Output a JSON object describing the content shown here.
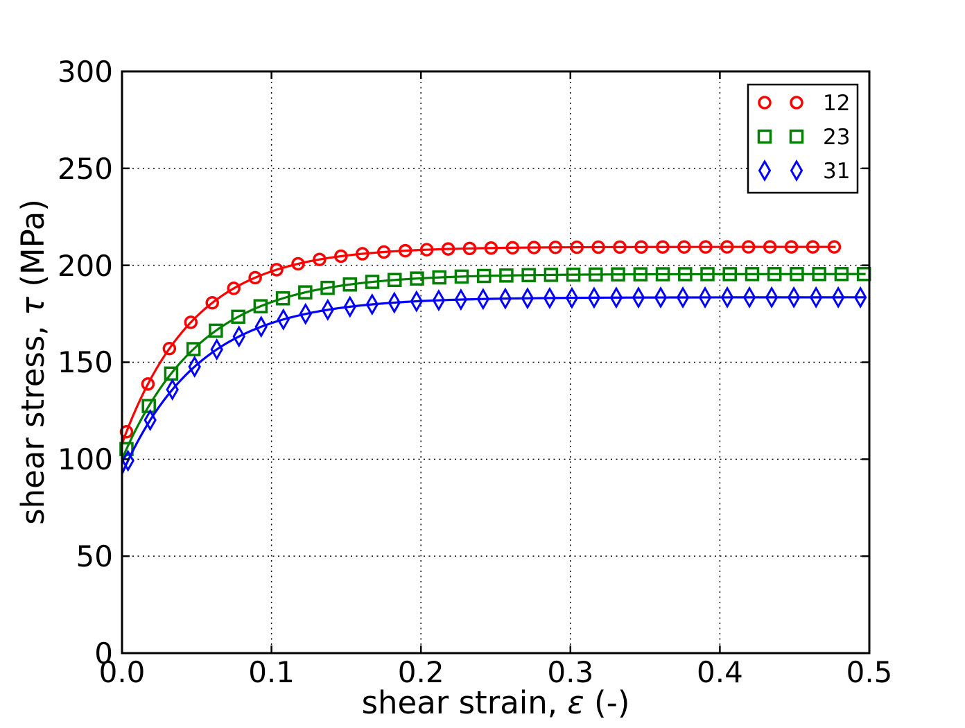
{
  "chart_data": {
    "type": "line",
    "title": "",
    "xlabel": {
      "pre": "shear strain, ",
      "symbol": "ε",
      "post": " (-)"
    },
    "ylabel": {
      "pre": "shear stress, ",
      "symbol": "τ",
      "post": " (MPa)"
    },
    "xlim": [
      0.0,
      0.5
    ],
    "ylim": [
      0,
      300
    ],
    "x_ticks": [
      0.0,
      0.1,
      0.2,
      0.3,
      0.4,
      0.5
    ],
    "x_tick_labels": [
      "0.0",
      "0.1",
      "0.2",
      "0.3",
      "0.4",
      "0.5"
    ],
    "y_ticks": [
      0,
      50,
      100,
      150,
      200,
      250,
      300
    ],
    "y_tick_labels": [
      "0",
      "50",
      "100",
      "150",
      "200",
      "250",
      "300"
    ],
    "grid": {
      "visible": true,
      "style": "dotted",
      "color": "#000000"
    },
    "legend": {
      "position": "upper right",
      "num_marker_points": 2,
      "entries": [
        "12",
        "23",
        "31"
      ]
    },
    "series": [
      {
        "name": "12",
        "color": "#ff0000",
        "marker": "circle",
        "model": {
          "tau0": 108.0,
          "tau_sat": 209.5,
          "eps_c": 0.048
        },
        "strain_end": 0.4795,
        "markers": {
          "first": 0.003,
          "step": 0.01435,
          "count": 34
        },
        "samples": {
          "strain": [
            0.0,
            0.05,
            0.1,
            0.15,
            0.2,
            0.25,
            0.3,
            0.35,
            0.4,
            0.45,
            0.48
          ],
          "stress": [
            108.0,
            173.7,
            196.9,
            205.0,
            207.9,
            208.9,
            209.3,
            209.4,
            209.5,
            209.5,
            209.5
          ]
        }
      },
      {
        "name": "23",
        "color": "#007f00",
        "marker": "square",
        "model": {
          "tau0": 100.0,
          "tau_sat": 195.5,
          "eps_c": 0.053
        },
        "strain_end": 0.4995,
        "markers": {
          "first": 0.003,
          "step": 0.01495,
          "count": 34
        },
        "samples": {
          "strain": [
            0.0,
            0.05,
            0.1,
            0.15,
            0.2,
            0.25,
            0.3,
            0.35,
            0.4,
            0.45,
            0.5
          ],
          "stress": [
            100.0,
            158.3,
            181.0,
            189.9,
            193.3,
            194.7,
            195.2,
            195.4,
            195.5,
            195.5,
            195.5
          ]
        }
      },
      {
        "name": "31",
        "color": "#0000ff",
        "marker": "thin-diamond",
        "model": {
          "tau0": 92.5,
          "tau_sat": 183.5,
          "eps_c": 0.052
        },
        "strain_end": 0.4975,
        "markers": {
          "first": 0.004,
          "step": 0.01485,
          "count": 34
        },
        "samples": {
          "strain": [
            0.0,
            0.05,
            0.1,
            0.15,
            0.2,
            0.25,
            0.3,
            0.35,
            0.4,
            0.45,
            0.5
          ],
          "stress": [
            92.5,
            148.7,
            170.2,
            178.4,
            181.6,
            182.8,
            183.2,
            183.4,
            183.5,
            183.5,
            183.5
          ]
        }
      }
    ]
  }
}
